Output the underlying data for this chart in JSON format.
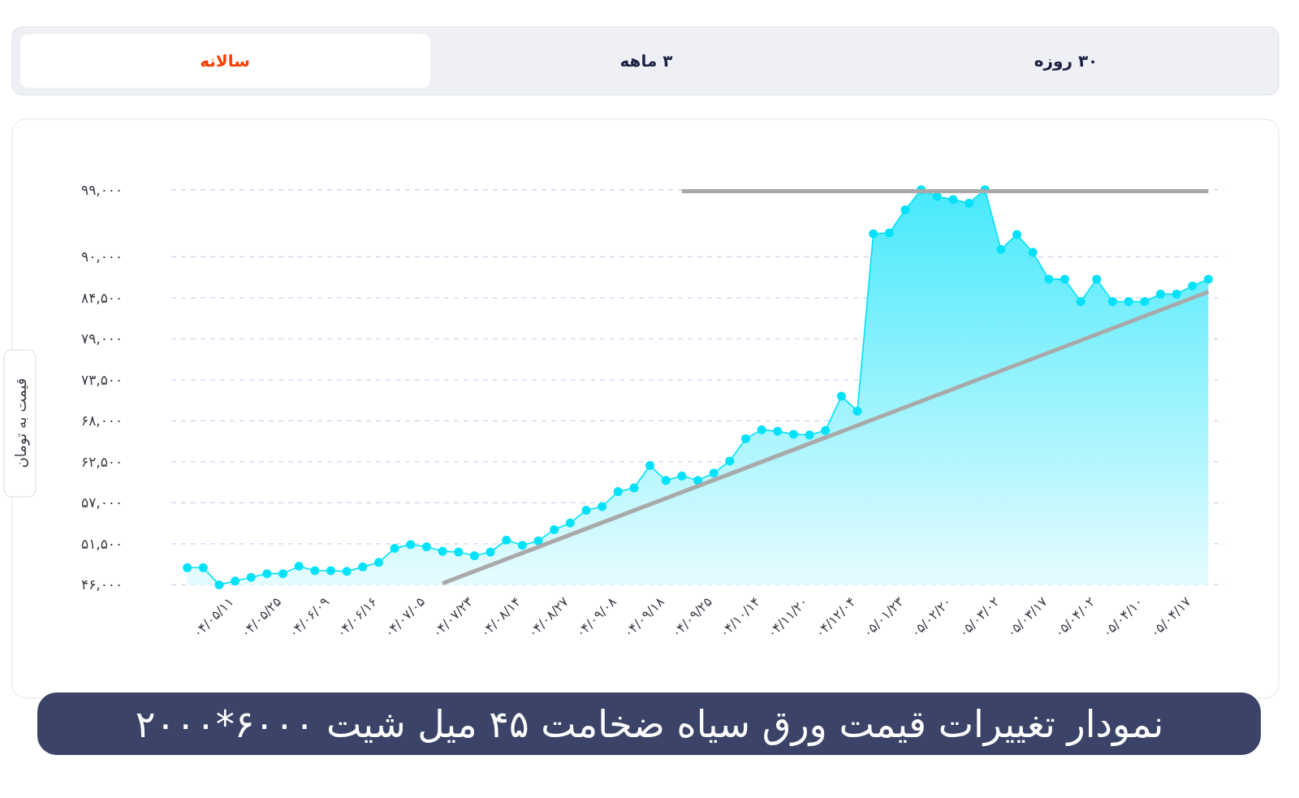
{
  "chart_data": {
    "type": "area",
    "title": "نمودار تغییرات قیمت ورق سیاه ضخامت ۴۵ میل شیت ۶۰۰۰*۲۰۰۰",
    "ylabel": "قیمت به تومان",
    "annotations": [
      "سالانه",
      "۳ ماهه",
      "۳۰ روزه"
    ],
    "categories": [
      null,
      null,
      null,
      "۰۴/۰۵/۱۱",
      null,
      null,
      "۰۴/۰۵/۲۵",
      null,
      null,
      "۰۴/۰۶/۰۹",
      null,
      null,
      "۰۴/۰۶/۱۶",
      null,
      null,
      "۰۴/۰۷/۰۵",
      null,
      null,
      "۰۴/۰۷/۲۳",
      null,
      null,
      "۰۴/۰۸/۱۴",
      null,
      null,
      "۰۴/۰۸/۲۷",
      null,
      null,
      "۰۴/۰۹/۰۸",
      null,
      null,
      "۰۴/۰۹/۱۸",
      null,
      null,
      "۰۴/۰۹/۲۵",
      null,
      null,
      "۰۴/۱۰/۱۴",
      null,
      null,
      "۰۴/۱۱/۲۰",
      null,
      null,
      "۰۴/۱۲/۰۴",
      null,
      null,
      "۰۵/۰۱/۲۳",
      null,
      null,
      "۰۵/۰۲/۲۰",
      null,
      null,
      "۰۵/۰۳/۰۲",
      null,
      null,
      "۰۵/۰۳/۱۷",
      null,
      null,
      "۰۵/۰۴/۰۲",
      null,
      null,
      "۰۵/۰۴/۱۰",
      null,
      null,
      "۰۵/۰۴/۱۷",
      null
    ],
    "series": [
      {
        "color": "#00e1fa",
        "marker": "circle",
        "values": [
          48300,
          48300,
          46000,
          46500,
          47000,
          47500,
          47500,
          48500,
          47900,
          47900,
          47800,
          48400,
          49000,
          50900,
          51400,
          51100,
          50500,
          50400,
          49900,
          50400,
          52000,
          51300,
          51900,
          53400,
          54300,
          56000,
          56500,
          58500,
          59000,
          62000,
          60000,
          60600,
          60000,
          61000,
          62600,
          65600,
          66800,
          66600,
          66200,
          66100,
          66700,
          71300,
          69300,
          93100,
          93200,
          96300,
          99000,
          98100,
          97700,
          97200,
          99000,
          91000,
          93000,
          90600,
          87000,
          87000,
          84000,
          87000,
          84000,
          84000,
          84000,
          85000,
          85000,
          86100,
          87000
        ]
      },
      {
        "type": "line",
        "color": "#a9a9a9",
        "values": [
          null,
          null,
          null,
          null,
          null,
          null,
          null,
          null,
          null,
          null,
          null,
          null,
          null,
          null,
          null,
          null,
          46200,
          null,
          null,
          null,
          null,
          null,
          null,
          null,
          null,
          null,
          null,
          null,
          null,
          null,
          null,
          null,
          null,
          null,
          null,
          null,
          null,
          null,
          null,
          null,
          null,
          null,
          null,
          null,
          null,
          null,
          null,
          null,
          null,
          null,
          null,
          null,
          null,
          null,
          null,
          null,
          null,
          null,
          null,
          null,
          null,
          null,
          null,
          null,
          85300
        ]
      },
      {
        "type": "line",
        "color": "#a9a9a9",
        "values": [
          null,
          null,
          null,
          null,
          null,
          null,
          null,
          null,
          null,
          null,
          null,
          null,
          null,
          null,
          null,
          null,
          null,
          null,
          null,
          null,
          null,
          null,
          null,
          null,
          null,
          null,
          null,
          null,
          null,
          null,
          null,
          98800,
          null,
          null,
          null,
          null,
          null,
          null,
          null,
          null,
          null,
          null,
          null,
          null,
          null,
          null,
          null,
          null,
          null,
          null,
          null,
          null,
          null,
          null,
          null,
          null,
          null,
          null,
          null,
          null,
          null,
          null,
          null,
          null,
          98800
        ]
      }
    ],
    "ylim": [
      46000,
      99000
    ],
    "yticks": [
      {
        "value": 46000,
        "label": "۴۶,۰۰۰"
      },
      {
        "value": 51500,
        "label": "۵۱,۵۰۰"
      },
      {
        "value": 57000,
        "label": "۵۷,۰۰۰"
      },
      {
        "value": 62500,
        "label": "۶۲,۵۰۰"
      },
      {
        "value": 68000,
        "label": "۶۸,۰۰۰"
      },
      {
        "value": 73500,
        "label": "۷۳,۵۰۰"
      },
      {
        "value": 79000,
        "label": "۷۹,۰۰۰"
      },
      {
        "value": 84500,
        "label": "۸۴,۵۰۰"
      },
      {
        "value": 90000,
        "label": "۹۰,۰۰۰"
      },
      {
        "value": 99000,
        "label": "۹۹,۰۰۰"
      }
    ],
    "grid": "y"
  }
}
